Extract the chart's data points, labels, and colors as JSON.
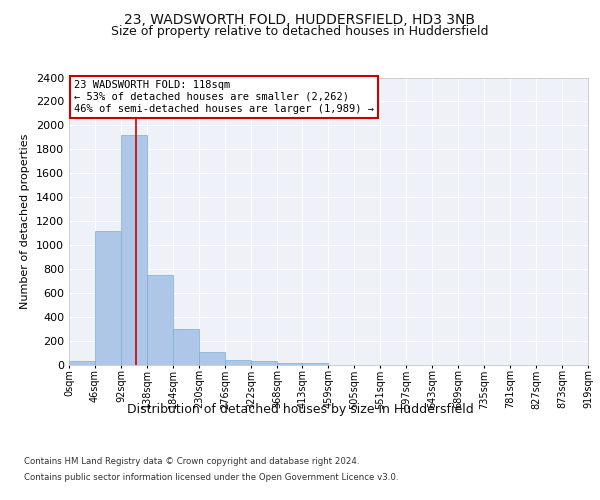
{
  "title": "23, WADSWORTH FOLD, HUDDERSFIELD, HD3 3NB",
  "subtitle": "Size of property relative to detached houses in Huddersfield",
  "xlabel": "Distribution of detached houses by size in Huddersfield",
  "ylabel": "Number of detached properties",
  "bin_edges": [
    0,
    46,
    92,
    138,
    184,
    230,
    276,
    322,
    368,
    413,
    459,
    505,
    551,
    597,
    643,
    689,
    735,
    781,
    827,
    873,
    919
  ],
  "bar_heights": [
    30,
    1120,
    1920,
    750,
    300,
    105,
    40,
    30,
    20,
    15,
    0,
    0,
    0,
    0,
    0,
    0,
    0,
    0,
    0,
    0
  ],
  "bar_color": "#aec6e8",
  "bar_edgecolor": "#7aaed4",
  "vline_x": 118,
  "vline_color": "#cc0000",
  "ylim": [
    0,
    2400
  ],
  "yticks": [
    0,
    200,
    400,
    600,
    800,
    1000,
    1200,
    1400,
    1600,
    1800,
    2000,
    2200,
    2400
  ],
  "annotation_title": "23 WADSWORTH FOLD: 118sqm",
  "annotation_line1": "← 53% of detached houses are smaller (2,262)",
  "annotation_line2": "46% of semi-detached houses are larger (1,989) →",
  "annotation_box_color": "#ffffff",
  "annotation_box_edgecolor": "#cc0000",
  "footer_line1": "Contains HM Land Registry data © Crown copyright and database right 2024.",
  "footer_line2": "Contains public sector information licensed under the Open Government Licence v3.0.",
  "bg_color": "#eef2f8",
  "grid_color": "#ffffff",
  "title_fontsize": 10,
  "subtitle_fontsize": 9,
  "xlabel_fontsize": 9,
  "ylabel_fontsize": 8,
  "tick_labels": [
    "0sqm",
    "46sqm",
    "92sqm",
    "138sqm",
    "184sqm",
    "230sqm",
    "276sqm",
    "322sqm",
    "368sqm",
    "413sqm",
    "459sqm",
    "505sqm",
    "551sqm",
    "597sqm",
    "643sqm",
    "689sqm",
    "735sqm",
    "781sqm",
    "827sqm",
    "873sqm",
    "919sqm"
  ]
}
